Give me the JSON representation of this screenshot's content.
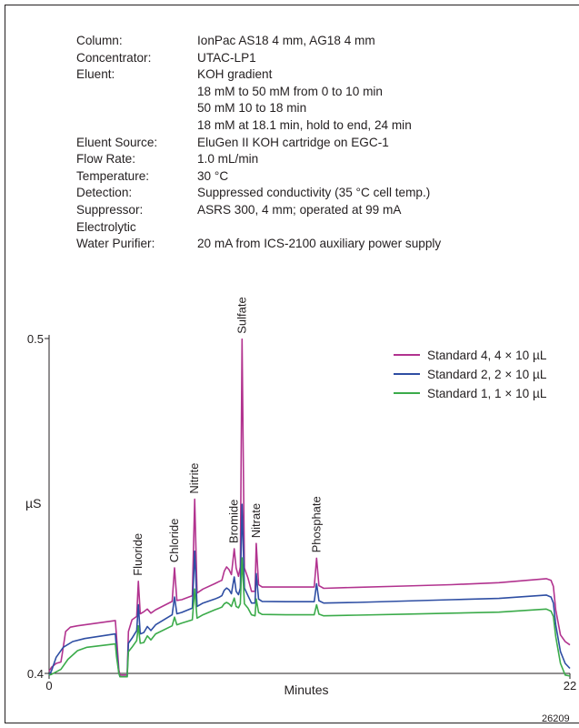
{
  "conditions": [
    {
      "label": "Column:",
      "value": "IonPac AS18 4 mm, AG18 4 mm"
    },
    {
      "label": "Concentrator:",
      "value": "UTAC-LP1"
    },
    {
      "label": "Eluent:",
      "value": "KOH gradient"
    },
    {
      "label": "",
      "value": "18 mM to 50 mM from 0 to 10 min"
    },
    {
      "label": "",
      "value": "50 mM 10 to 18 min"
    },
    {
      "label": "",
      "value": "18 mM at 18.1 min, hold to end, 24 min"
    },
    {
      "label": "Eluent Source:",
      "value": "EluGen II KOH cartridge on EGC-1"
    },
    {
      "label": "Flow Rate:",
      "value": "1.0 mL/min"
    },
    {
      "label": "Temperature:",
      "value": "30 °C"
    },
    {
      "label": "Detection:",
      "value": "Suppressed conductivity (35 °C cell temp.)"
    },
    {
      "label": "Suppressor:",
      "value": "ASRS 300, 4 mm; operated at 99 mA"
    },
    {
      "label": "Electrolytic",
      "value": ""
    },
    {
      "label": "Water Purifier:",
      "value": "20 mA from ICS-2100 auxiliary power supply"
    }
  ],
  "figure_number": "26209",
  "chart_data": {
    "type": "line",
    "xlabel": "Minutes",
    "ylabel": "µS",
    "xlim": [
      0,
      22
    ],
    "ylim": [
      0.4,
      0.5
    ],
    "x_ticks": [
      "0",
      "22"
    ],
    "y_ticks": [
      "0.4",
      "0.5"
    ],
    "legend_position": "top-right",
    "peaks": [
      {
        "name": "Fluoride",
        "x": 3.77
      },
      {
        "name": "Chloride",
        "x": 5.3
      },
      {
        "name": "Nitrite",
        "x": 6.15
      },
      {
        "name": "Bromide",
        "x": 7.82
      },
      {
        "name": "Sulfate",
        "x": 8.15
      },
      {
        "name": "Nitrate",
        "x": 8.75
      },
      {
        "name": "Phosphate",
        "x": 11.3
      }
    ],
    "series": [
      {
        "name": "Standard 4, 4 × 10 µL",
        "color": "#b2338f",
        "points": [
          [
            0,
            0.4006
          ],
          [
            0.1,
            0.4018
          ],
          [
            0.3,
            0.403
          ],
          [
            0.5,
            0.4034
          ],
          [
            0.55,
            0.4055
          ],
          [
            0.7,
            0.4125
          ],
          [
            0.9,
            0.4138
          ],
          [
            1.2,
            0.4142
          ],
          [
            2.8,
            0.4158
          ],
          [
            2.85,
            0.411
          ],
          [
            2.95,
            0.401
          ],
          [
            3.0,
            0.3995
          ],
          [
            3.3,
            0.3995
          ],
          [
            3.35,
            0.4125
          ],
          [
            3.5,
            0.416
          ],
          [
            3.7,
            0.417
          ],
          [
            3.77,
            0.4275
          ],
          [
            3.85,
            0.4178
          ],
          [
            4.0,
            0.4184
          ],
          [
            4.15,
            0.4192
          ],
          [
            4.3,
            0.418
          ],
          [
            4.5,
            0.419
          ],
          [
            5.2,
            0.4215
          ],
          [
            5.3,
            0.4315
          ],
          [
            5.4,
            0.4218
          ],
          [
            5.6,
            0.422
          ],
          [
            6.05,
            0.4232
          ],
          [
            6.15,
            0.452
          ],
          [
            6.25,
            0.424
          ],
          [
            6.5,
            0.4252
          ],
          [
            7.0,
            0.4268
          ],
          [
            7.2,
            0.4275
          ],
          [
            7.3,
            0.4278
          ],
          [
            7.4,
            0.4305
          ],
          [
            7.5,
            0.4318
          ],
          [
            7.6,
            0.431
          ],
          [
            7.7,
            0.4295
          ],
          [
            7.82,
            0.4372
          ],
          [
            7.9,
            0.4315
          ],
          [
            8.0,
            0.429
          ],
          [
            8.08,
            0.4318
          ],
          [
            8.15,
            0.4998
          ],
          [
            8.25,
            0.4315
          ],
          [
            8.4,
            0.4285
          ],
          [
            8.55,
            0.4245
          ],
          [
            8.7,
            0.4245
          ],
          [
            8.75,
            0.4388
          ],
          [
            8.85,
            0.4265
          ],
          [
            9.0,
            0.4258
          ],
          [
            10,
            0.4258
          ],
          [
            11.2,
            0.4258
          ],
          [
            11.3,
            0.4344
          ],
          [
            11.4,
            0.4262
          ],
          [
            11.6,
            0.4254
          ],
          [
            13,
            0.4257
          ],
          [
            15,
            0.4261
          ],
          [
            17,
            0.4265
          ],
          [
            19,
            0.4271
          ],
          [
            21.0,
            0.4283
          ],
          [
            21.2,
            0.4278
          ],
          [
            21.3,
            0.426
          ],
          [
            21.4,
            0.419
          ],
          [
            21.6,
            0.4115
          ],
          [
            21.8,
            0.4095
          ],
          [
            22,
            0.4085
          ]
        ]
      },
      {
        "name": "Standard 2, 2 × 10 µL",
        "color": "#2e4ea3",
        "points": [
          [
            0,
            0.3995
          ],
          [
            0.1,
            0.4007
          ],
          [
            0.3,
            0.4048
          ],
          [
            0.6,
            0.4078
          ],
          [
            1.0,
            0.4095
          ],
          [
            1.5,
            0.4104
          ],
          [
            2.8,
            0.4118
          ],
          [
            2.85,
            0.407
          ],
          [
            2.95,
            0.4
          ],
          [
            3.0,
            0.399
          ],
          [
            3.3,
            0.399
          ],
          [
            3.35,
            0.409
          ],
          [
            3.5,
            0.4105
          ],
          [
            3.7,
            0.4128
          ],
          [
            3.77,
            0.4205
          ],
          [
            3.85,
            0.4118
          ],
          [
            4.0,
            0.4122
          ],
          [
            4.15,
            0.414
          ],
          [
            4.3,
            0.4128
          ],
          [
            4.5,
            0.4145
          ],
          [
            5.2,
            0.4175
          ],
          [
            5.3,
            0.4228
          ],
          [
            5.4,
            0.4178
          ],
          [
            5.6,
            0.4182
          ],
          [
            6.05,
            0.4195
          ],
          [
            6.15,
            0.4365
          ],
          [
            6.25,
            0.42
          ],
          [
            6.5,
            0.421
          ],
          [
            7.0,
            0.4222
          ],
          [
            7.2,
            0.4228
          ],
          [
            7.3,
            0.4232
          ],
          [
            7.4,
            0.4248
          ],
          [
            7.5,
            0.4255
          ],
          [
            7.6,
            0.425
          ],
          [
            7.7,
            0.4238
          ],
          [
            7.82,
            0.4288
          ],
          [
            7.9,
            0.4245
          ],
          [
            8.0,
            0.4235
          ],
          [
            8.08,
            0.4255
          ],
          [
            8.15,
            0.4505
          ],
          [
            8.25,
            0.4255
          ],
          [
            8.4,
            0.4232
          ],
          [
            8.55,
            0.421
          ],
          [
            8.7,
            0.421
          ],
          [
            8.75,
            0.4298
          ],
          [
            8.85,
            0.4222
          ],
          [
            9.0,
            0.4215
          ],
          [
            10,
            0.4214
          ],
          [
            11.2,
            0.4214
          ],
          [
            11.3,
            0.4268
          ],
          [
            11.4,
            0.4217
          ],
          [
            11.6,
            0.421
          ],
          [
            13,
            0.4212
          ],
          [
            15,
            0.4216
          ],
          [
            17,
            0.422
          ],
          [
            19,
            0.4224
          ],
          [
            21.0,
            0.4234
          ],
          [
            21.2,
            0.4228
          ],
          [
            21.3,
            0.421
          ],
          [
            21.4,
            0.4145
          ],
          [
            21.6,
            0.4065
          ],
          [
            21.8,
            0.403
          ],
          [
            22,
            0.4015
          ]
        ]
      },
      {
        "name": "Standard 1, 1 × 10 µL",
        "color": "#3bab4a",
        "points": [
          [
            0,
            0.3995
          ],
          [
            0.1,
            0.3997
          ],
          [
            0.5,
            0.4012
          ],
          [
            0.8,
            0.4042
          ],
          [
            1.2,
            0.4068
          ],
          [
            1.6,
            0.4078
          ],
          [
            2.8,
            0.4088
          ],
          [
            2.85,
            0.405
          ],
          [
            2.95,
            0.4
          ],
          [
            3.0,
            0.399
          ],
          [
            3.3,
            0.399
          ],
          [
            3.35,
            0.4065
          ],
          [
            3.5,
            0.4078
          ],
          [
            3.7,
            0.4098
          ],
          [
            3.77,
            0.4142
          ],
          [
            3.85,
            0.409
          ],
          [
            4.0,
            0.4092
          ],
          [
            4.15,
            0.4112
          ],
          [
            4.3,
            0.41
          ],
          [
            4.5,
            0.4118
          ],
          [
            5.2,
            0.4142
          ],
          [
            5.3,
            0.4168
          ],
          [
            5.4,
            0.4145
          ],
          [
            5.6,
            0.415
          ],
          [
            6.05,
            0.416
          ],
          [
            6.15,
            0.4252
          ],
          [
            6.25,
            0.4165
          ],
          [
            6.5,
            0.4175
          ],
          [
            7.0,
            0.419
          ],
          [
            7.2,
            0.4195
          ],
          [
            7.3,
            0.4198
          ],
          [
            7.4,
            0.4208
          ],
          [
            7.5,
            0.4212
          ],
          [
            7.6,
            0.4208
          ],
          [
            7.7,
            0.42
          ],
          [
            7.82,
            0.4225
          ],
          [
            7.9,
            0.42
          ],
          [
            8.0,
            0.4196
          ],
          [
            8.08,
            0.4208
          ],
          [
            8.15,
            0.4345
          ],
          [
            8.25,
            0.4208
          ],
          [
            8.4,
            0.4195
          ],
          [
            8.55,
            0.4175
          ],
          [
            8.7,
            0.4172
          ],
          [
            8.75,
            0.4222
          ],
          [
            8.85,
            0.4182
          ],
          [
            9.0,
            0.4176
          ],
          [
            10,
            0.4175
          ],
          [
            11.2,
            0.4175
          ],
          [
            11.3,
            0.4205
          ],
          [
            11.4,
            0.4177
          ],
          [
            11.6,
            0.4172
          ],
          [
            13,
            0.4174
          ],
          [
            15,
            0.4177
          ],
          [
            17,
            0.418
          ],
          [
            19,
            0.4183
          ],
          [
            21.0,
            0.4192
          ],
          [
            21.2,
            0.4186
          ],
          [
            21.3,
            0.417
          ],
          [
            21.4,
            0.411
          ],
          [
            21.6,
            0.403
          ],
          [
            21.8,
            0.3995
          ],
          [
            22,
            0.3992
          ]
        ]
      }
    ]
  }
}
